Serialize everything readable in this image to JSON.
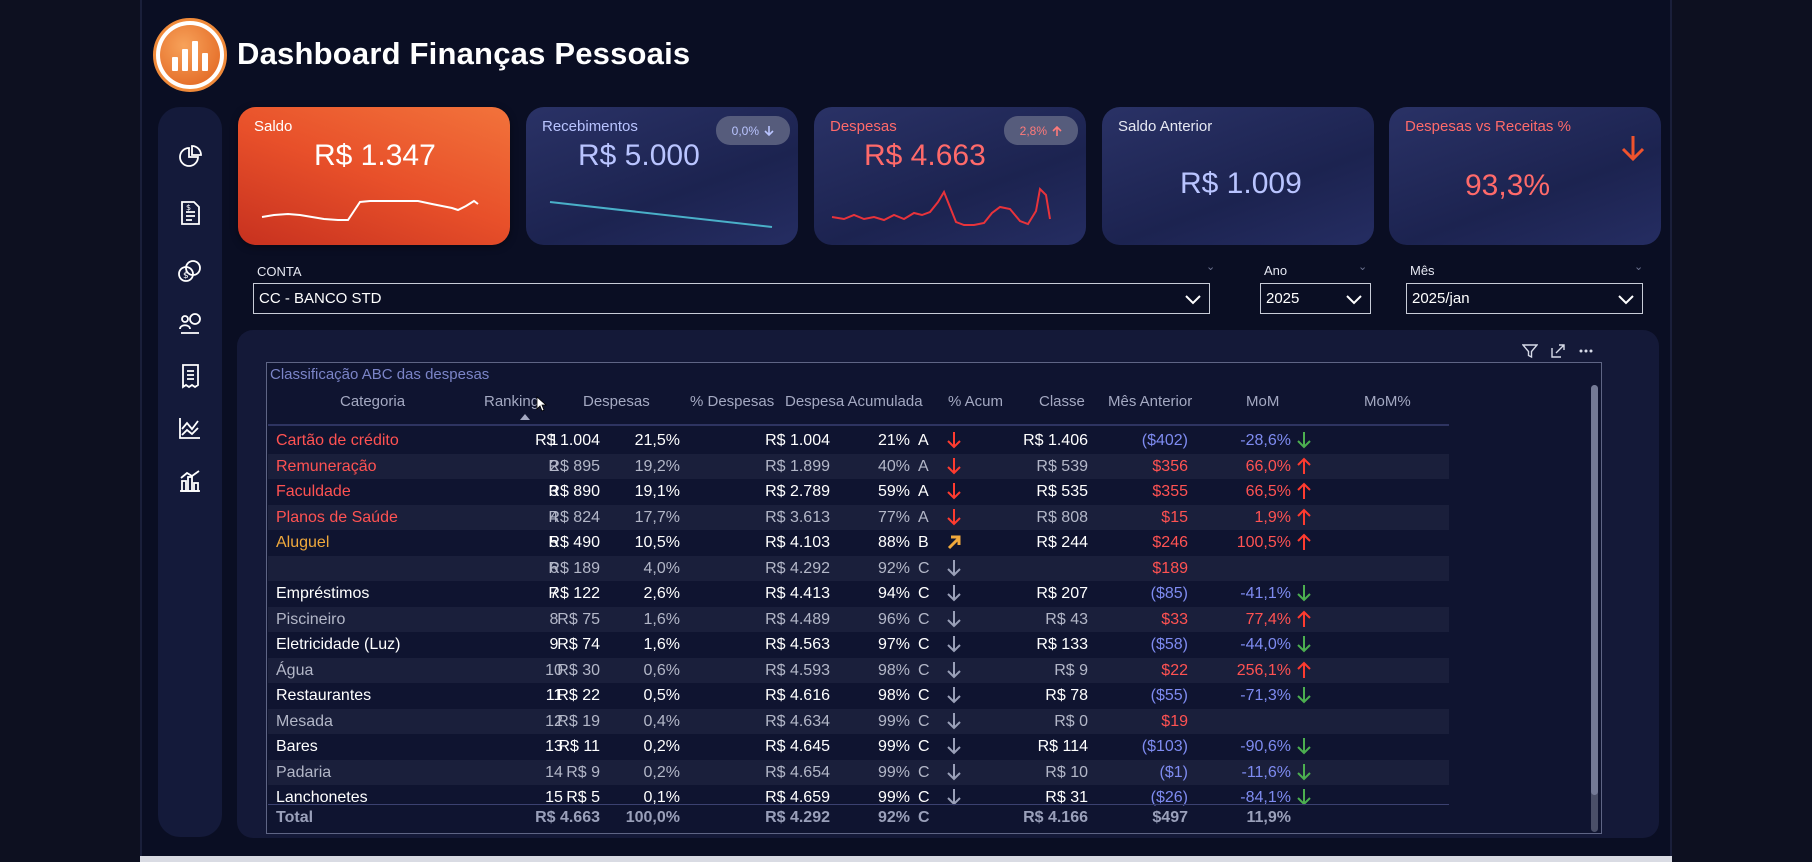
{
  "app": {
    "title": "Dashboard Finanças Pessoais"
  },
  "nav": {
    "items": [
      {
        "name": "pie-chart-icon"
      },
      {
        "name": "invoice-icon"
      },
      {
        "name": "coins-icon"
      },
      {
        "name": "people-money-icon"
      },
      {
        "name": "receipt-icon"
      },
      {
        "name": "line-chart-icon"
      },
      {
        "name": "bar-chart-icon"
      }
    ]
  },
  "kpis": {
    "saldo": {
      "label": "Saldo",
      "value": "R$ 1.347"
    },
    "recebimentos": {
      "label": "Recebimentos",
      "value": "R$ 5.000",
      "badge": "0,0%"
    },
    "despesas": {
      "label": "Despesas",
      "value": "R$ 4.663",
      "badge": "2,8%"
    },
    "saldo_anterior": {
      "label": "Saldo Anterior",
      "value": "R$ 1.009"
    },
    "despesas_vs_receitas": {
      "label": "Despesas vs Receitas %",
      "value": "93,3%"
    }
  },
  "slicers": {
    "conta": {
      "label": "CONTA",
      "value": "CC - BANCO STD"
    },
    "ano": {
      "label": "Ano",
      "value": "2025"
    },
    "mes": {
      "label": "Mês",
      "value": "2025/jan"
    }
  },
  "table": {
    "title": "Classificação ABC das despesas",
    "headers": {
      "categoria": "Categoria",
      "ranking": "Ranking",
      "despesas": "Despesas",
      "pct_despesas": "% Despesas",
      "despesa_acumulada": "Despesa Acumulada",
      "pct_acum": "% Acum",
      "classe": "Classe",
      "mes_anterior": "Mês Anterior",
      "mom": "MoM",
      "mom_pct": "MoM%"
    },
    "rows": [
      {
        "categoria": "Cartão de crédito",
        "ranking": "1",
        "despesas": "R$ 1.004",
        "pct_despesas": "21,5%",
        "acumulada": "R$ 1.004",
        "pct_acum": "21%",
        "classe": "A",
        "mes_anterior": "R$ 1.406",
        "mom": "($402)",
        "mom_pct": "-28,6%"
      },
      {
        "categoria": "Remuneração",
        "ranking": "2",
        "despesas": "R$ 895",
        "pct_despesas": "19,2%",
        "acumulada": "R$ 1.899",
        "pct_acum": "40%",
        "classe": "A",
        "mes_anterior": "R$ 539",
        "mom": "$356",
        "mom_pct": "66,0%"
      },
      {
        "categoria": "Faculdade",
        "ranking": "3",
        "despesas": "R$ 890",
        "pct_despesas": "19,1%",
        "acumulada": "R$ 2.789",
        "pct_acum": "59%",
        "classe": "A",
        "mes_anterior": "R$ 535",
        "mom": "$355",
        "mom_pct": "66,5%"
      },
      {
        "categoria": "Planos de Saúde",
        "ranking": "4",
        "despesas": "R$ 824",
        "pct_despesas": "17,7%",
        "acumulada": "R$ 3.613",
        "pct_acum": "77%",
        "classe": "A",
        "mes_anterior": "R$ 808",
        "mom": "$15",
        "mom_pct": "1,9%"
      },
      {
        "categoria": "Aluguel",
        "ranking": "5",
        "despesas": "R$ 490",
        "pct_despesas": "10,5%",
        "acumulada": "R$ 4.103",
        "pct_acum": "88%",
        "classe": "B",
        "mes_anterior": "R$ 244",
        "mom": "$246",
        "mom_pct": "100,5%"
      },
      {
        "categoria": "",
        "ranking": "6",
        "despesas": "R$ 189",
        "pct_despesas": "4,0%",
        "acumulada": "R$ 4.292",
        "pct_acum": "92%",
        "classe": "C",
        "mes_anterior": "",
        "mom": "$189",
        "mom_pct": ""
      },
      {
        "categoria": "Empréstimos",
        "ranking": "7",
        "despesas": "R$ 122",
        "pct_despesas": "2,6%",
        "acumulada": "R$ 4.413",
        "pct_acum": "94%",
        "classe": "C",
        "mes_anterior": "R$ 207",
        "mom": "($85)",
        "mom_pct": "-41,1%"
      },
      {
        "categoria": "Piscineiro",
        "ranking": "8",
        "despesas": "R$ 75",
        "pct_despesas": "1,6%",
        "acumulada": "R$ 4.489",
        "pct_acum": "96%",
        "classe": "C",
        "mes_anterior": "R$ 43",
        "mom": "$33",
        "mom_pct": "77,4%"
      },
      {
        "categoria": "Eletricidade (Luz)",
        "ranking": "9",
        "despesas": "R$ 74",
        "pct_despesas": "1,6%",
        "acumulada": "R$ 4.563",
        "pct_acum": "97%",
        "classe": "C",
        "mes_anterior": "R$ 133",
        "mom": "($58)",
        "mom_pct": "-44,0%"
      },
      {
        "categoria": "Água",
        "ranking": "10",
        "despesas": "R$ 30",
        "pct_despesas": "0,6%",
        "acumulada": "R$ 4.593",
        "pct_acum": "98%",
        "classe": "C",
        "mes_anterior": "R$ 9",
        "mom": "$22",
        "mom_pct": "256,1%"
      },
      {
        "categoria": "Restaurantes",
        "ranking": "11",
        "despesas": "R$ 22",
        "pct_despesas": "0,5%",
        "acumulada": "R$ 4.616",
        "pct_acum": "98%",
        "classe": "C",
        "mes_anterior": "R$ 78",
        "mom": "($55)",
        "mom_pct": "-71,3%"
      },
      {
        "categoria": "Mesada",
        "ranking": "12",
        "despesas": "R$ 19",
        "pct_despesas": "0,4%",
        "acumulada": "R$ 4.634",
        "pct_acum": "99%",
        "classe": "C",
        "mes_anterior": "R$ 0",
        "mom": "$19",
        "mom_pct": ""
      },
      {
        "categoria": "Bares",
        "ranking": "13",
        "despesas": "R$ 11",
        "pct_despesas": "0,2%",
        "acumulada": "R$ 4.645",
        "pct_acum": "99%",
        "classe": "C",
        "mes_anterior": "R$ 114",
        "mom": "($103)",
        "mom_pct": "-90,6%"
      },
      {
        "categoria": "Padaria",
        "ranking": "14",
        "despesas": "R$ 9",
        "pct_despesas": "0,2%",
        "acumulada": "R$ 4.654",
        "pct_acum": "99%",
        "classe": "C",
        "mes_anterior": "R$ 10",
        "mom": "($1)",
        "mom_pct": "-11,6%"
      },
      {
        "categoria": "Lanchonetes",
        "ranking": "15",
        "despesas": "R$ 5",
        "pct_despesas": "0,1%",
        "acumulada": "R$ 4.659",
        "pct_acum": "99%",
        "classe": "C",
        "mes_anterior": "R$ 31",
        "mom": "($26)",
        "mom_pct": "-84,1%"
      }
    ],
    "total": {
      "label": "Total",
      "despesas": "R$ 4.663",
      "pct_despesas": "100,0%",
      "acumulada": "R$ 4.292",
      "pct_acum": "92%",
      "classe": "C",
      "mes_anterior": "R$ 4.166",
      "mom": "$497",
      "mom_pct": "11,9%"
    }
  },
  "colors": {
    "accent_orange": "#f0652f",
    "expense_red": "#ff5252",
    "class_b_gold": "#f0a93c",
    "mom_blue": "#7e8bf0",
    "down_green": "#4caf50",
    "kpi_blue_text": "#b9c4ff"
  }
}
